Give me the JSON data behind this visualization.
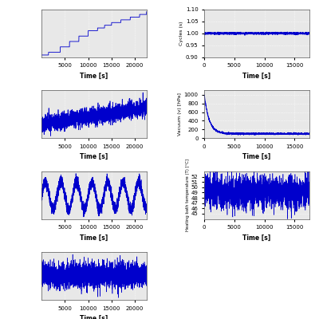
{
  "left_xlim": [
    0,
    22500
  ],
  "left_xticks": [
    5000,
    10000,
    15000,
    20000
  ],
  "right_xlim": [
    0,
    17500
  ],
  "right_xticks": [
    0,
    5000,
    10000,
    15000
  ],
  "xlabel": "Time [s]",
  "bg_color": "#e8e8e8",
  "line_color": "#0000cc",
  "cycles_ylabel": "Cycles (s)",
  "cycles_ylim": [
    0.9,
    1.1
  ],
  "cycles_yticks": [
    0.9,
    0.95,
    1.0,
    1.05,
    1.1
  ],
  "vacuum_ylabel": "Vacuum (v) [hPa]",
  "vacuum_ylim": [
    0,
    1100
  ],
  "vacuum_yticks": [
    0,
    200,
    400,
    600,
    800,
    1000
  ],
  "heating_ylabel": "Heating bath temperature (T) [°C]",
  "heating_ylim": [
    44,
    53
  ],
  "heating_yticks": [
    45,
    46,
    47,
    48,
    49,
    50,
    51,
    52
  ]
}
